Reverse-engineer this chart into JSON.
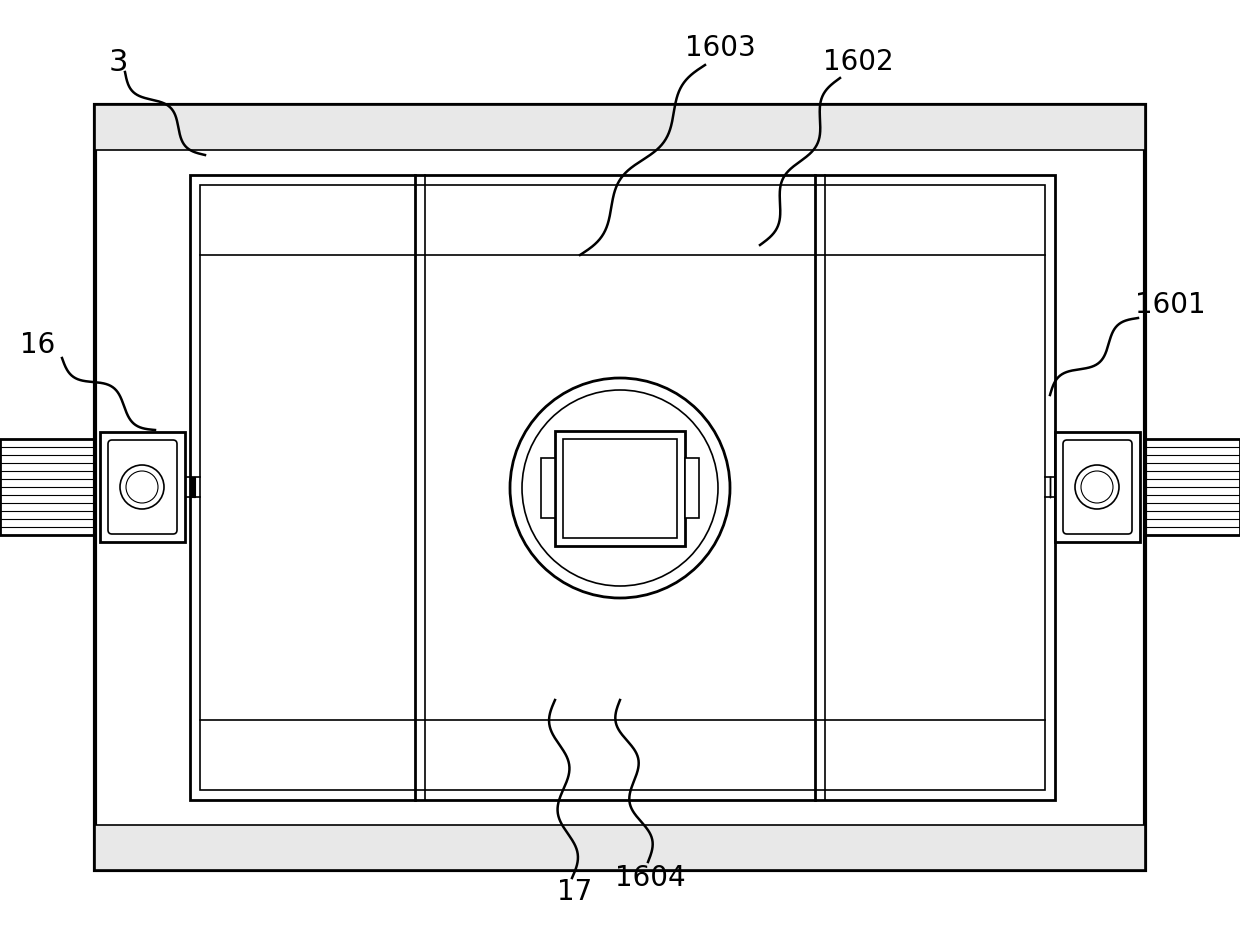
{
  "bg_color": "#ffffff",
  "line_color": "#000000",
  "fig_width": 12.4,
  "fig_height": 9.39,
  "dpi": 100
}
